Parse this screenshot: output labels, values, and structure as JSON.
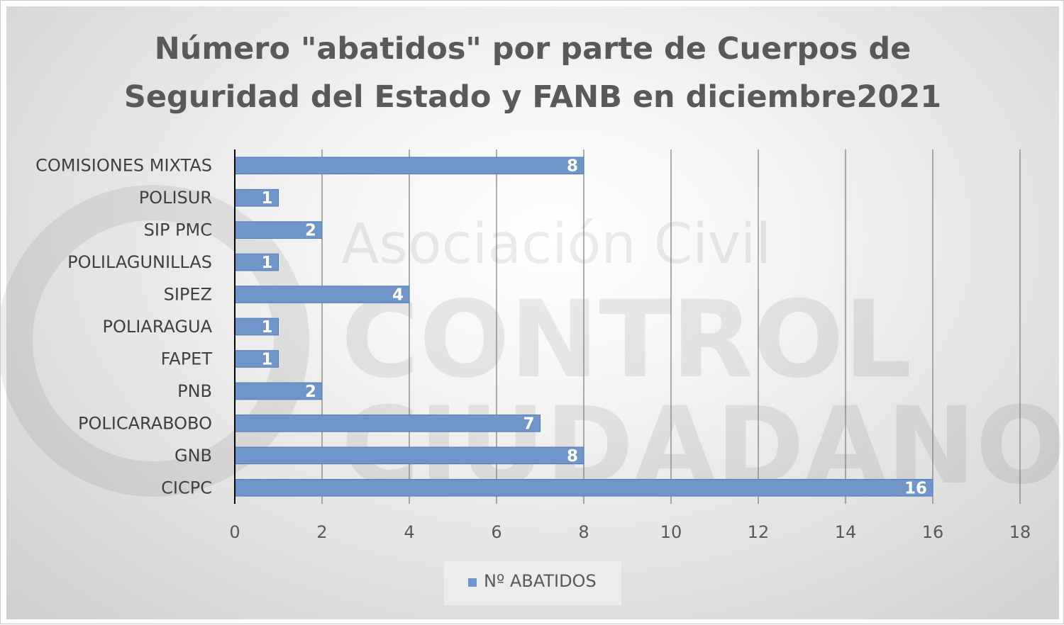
{
  "chart_data": {
    "type": "bar",
    "orientation": "horizontal",
    "title_lines": [
      "Número \"abatidos\"  por parte de Cuerpos de",
      "Seguridad del Estado y FANB en diciembre2021"
    ],
    "categories": [
      "COMISIONES MIXTAS",
      "POLISUR",
      "SIP PMC",
      "POLILAGUNILLAS",
      "SIPEZ",
      "POLIARAGUA",
      "FAPET",
      "PNB",
      "POLICARABOBO",
      "GNB",
      "CICPC"
    ],
    "series": [
      {
        "name": "Nº ABATIDOS",
        "values": [
          8,
          1,
          2,
          1,
          4,
          1,
          1,
          2,
          7,
          8,
          16
        ]
      }
    ],
    "xlim": [
      0,
      18
    ],
    "xticks": [
      0,
      2,
      4,
      6,
      8,
      10,
      12,
      14,
      16,
      18
    ],
    "grid": "vertical",
    "legend_position": "bottom",
    "data_labels": true,
    "colors": {
      "bar": "#6f95c9",
      "bar_stroke": "#4f7bb5",
      "grid": "#7a7a7a",
      "axis": "#000000"
    }
  },
  "watermark": {
    "line1": "Asociación Civil",
    "line2": "CONTROL",
    "line3": "CIUDADANO"
  }
}
